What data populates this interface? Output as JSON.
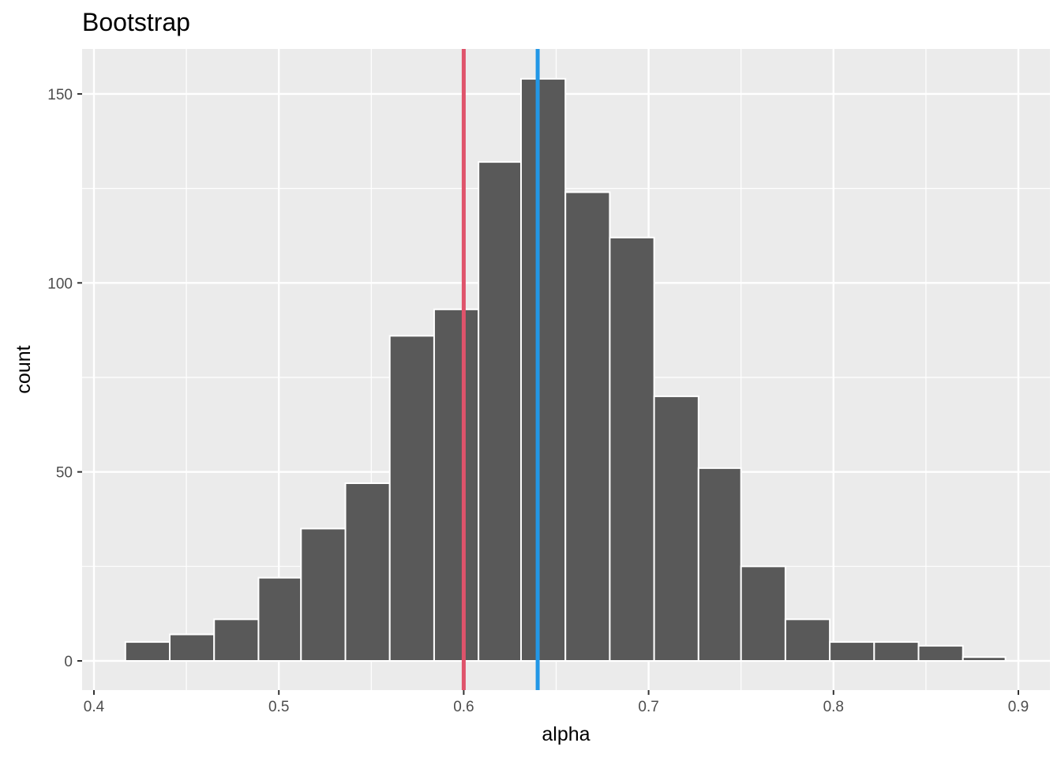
{
  "chart_data": {
    "type": "bar",
    "title": "Bootstrap",
    "xlabel": "alpha",
    "ylabel": "count",
    "xlim": [
      0.4,
      0.9
    ],
    "ylim": [
      0,
      150
    ],
    "x_ticks": [
      0.4,
      0.5,
      0.6,
      0.7,
      0.8,
      0.9
    ],
    "x_tick_labels": [
      "0.4",
      "0.5",
      "0.6",
      "0.7",
      "0.8",
      "0.9"
    ],
    "y_ticks": [
      0,
      50,
      100,
      150
    ],
    "y_tick_labels": [
      "0",
      "50",
      "100",
      "150"
    ],
    "bins": [
      {
        "start": 0.417,
        "end": 0.441,
        "count": 5
      },
      {
        "start": 0.441,
        "end": 0.465,
        "count": 7
      },
      {
        "start": 0.465,
        "end": 0.489,
        "count": 11
      },
      {
        "start": 0.489,
        "end": 0.512,
        "count": 22
      },
      {
        "start": 0.512,
        "end": 0.536,
        "count": 35
      },
      {
        "start": 0.536,
        "end": 0.56,
        "count": 47
      },
      {
        "start": 0.56,
        "end": 0.584,
        "count": 86
      },
      {
        "start": 0.584,
        "end": 0.608,
        "count": 93
      },
      {
        "start": 0.608,
        "end": 0.631,
        "count": 132
      },
      {
        "start": 0.631,
        "end": 0.655,
        "count": 154
      },
      {
        "start": 0.655,
        "end": 0.679,
        "count": 124
      },
      {
        "start": 0.679,
        "end": 0.703,
        "count": 112
      },
      {
        "start": 0.703,
        "end": 0.727,
        "count": 70
      },
      {
        "start": 0.727,
        "end": 0.75,
        "count": 51
      },
      {
        "start": 0.75,
        "end": 0.774,
        "count": 25
      },
      {
        "start": 0.774,
        "end": 0.798,
        "count": 11
      },
      {
        "start": 0.798,
        "end": 0.822,
        "count": 5
      },
      {
        "start": 0.822,
        "end": 0.846,
        "count": 5
      },
      {
        "start": 0.846,
        "end": 0.87,
        "count": 4
      },
      {
        "start": 0.87,
        "end": 0.893,
        "count": 1
      }
    ],
    "vlines": [
      {
        "x": 0.6,
        "color": "#DF536B"
      },
      {
        "x": 0.64,
        "color": "#2297E6"
      }
    ],
    "bar_color": "#595959",
    "bar_outline": "#ffffff",
    "panel_background": "#EBEBEB",
    "grid": true
  }
}
